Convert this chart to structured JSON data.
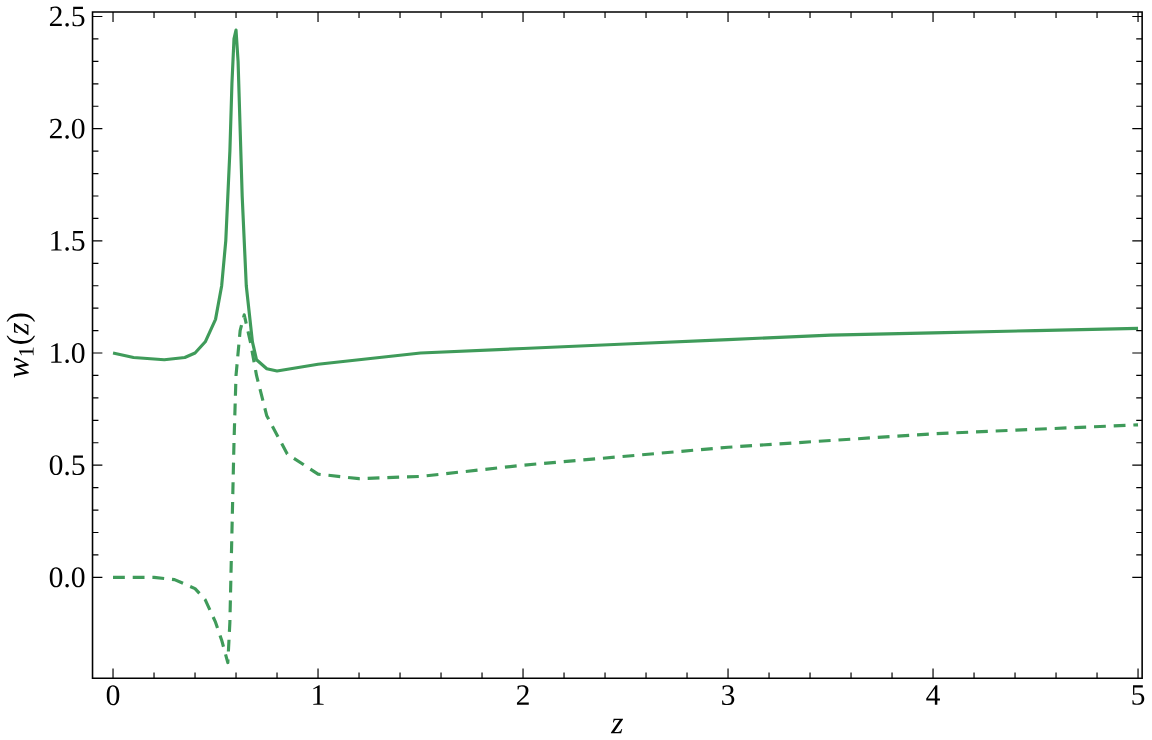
{
  "chart_data": {
    "type": "line",
    "xlabel": "z",
    "ylabel": "*w*$_{1}$(*z*)",
    "xlim": [
      -0.1,
      5.02
    ],
    "ylim": [
      -0.45,
      2.52
    ],
    "xticks": [
      0,
      1,
      2,
      3,
      4,
      5
    ],
    "yticks": [
      {
        "value": 0,
        "label": "0.0"
      },
      0.5,
      {
        "value": 1,
        "label": "1.0"
      },
      1.5,
      {
        "value": 2,
        "label": "2.0"
      },
      2.5
    ],
    "series": [
      {
        "color": "#3f9b5a",
        "line_style": "solid",
        "x": [
          0,
          0.1,
          0.25,
          0.35,
          0.4,
          0.45,
          0.5,
          0.53,
          0.55,
          0.57,
          0.58,
          0.59,
          0.6,
          0.61,
          0.62,
          0.63,
          0.65,
          0.68,
          0.7,
          0.75,
          0.8,
          1.0,
          1.5,
          2,
          2.5,
          3,
          3.5,
          4,
          4.5,
          5
        ],
        "values": [
          1.0,
          0.98,
          0.97,
          0.98,
          1.0,
          1.05,
          1.15,
          1.3,
          1.5,
          1.9,
          2.2,
          2.4,
          2.44,
          2.3,
          2.0,
          1.7,
          1.3,
          1.05,
          0.97,
          0.93,
          0.92,
          0.95,
          1.0,
          1.02,
          1.04,
          1.06,
          1.08,
          1.09,
          1.1,
          1.11
        ]
      },
      {
        "color": "#3f9b5a",
        "line_style": "dashed",
        "x": [
          0,
          0.2,
          0.3,
          0.4,
          0.45,
          0.5,
          0.53,
          0.56,
          0.57,
          0.58,
          0.59,
          0.6,
          0.62,
          0.64,
          0.67,
          0.7,
          0.75,
          0.85,
          1.0,
          1.2,
          1.5,
          2,
          2.5,
          3,
          3.5,
          4,
          4.5,
          5
        ],
        "values": [
          0.0,
          0.0,
          -0.01,
          -0.05,
          -0.1,
          -0.2,
          -0.28,
          -0.38,
          -0.2,
          0.2,
          0.6,
          0.9,
          1.1,
          1.17,
          1.05,
          0.9,
          0.72,
          0.55,
          0.46,
          0.44,
          0.45,
          0.5,
          0.54,
          0.58,
          0.61,
          0.64,
          0.66,
          0.68
        ]
      }
    ]
  }
}
